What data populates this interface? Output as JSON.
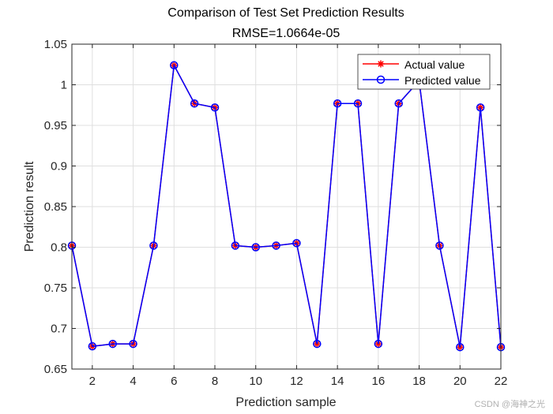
{
  "chart_data": {
    "type": "line",
    "title": "Comparison of Test Set Prediction Results",
    "subtitle": "RMSE=1.0664e-05",
    "xlabel": "Prediction sample",
    "ylabel": "Prediction result",
    "xlim": [
      1,
      22
    ],
    "ylim": [
      0.65,
      1.05
    ],
    "xticks": [
      "2",
      "4",
      "6",
      "8",
      "10",
      "12",
      "14",
      "16",
      "18",
      "20",
      "22"
    ],
    "yticks": [
      "0.65",
      "0.7",
      "0.75",
      "0.8",
      "0.85",
      "0.9",
      "0.95",
      "1",
      "1.05"
    ],
    "grid": true,
    "legend_position": "top-right",
    "x": [
      1,
      2,
      3,
      4,
      5,
      6,
      7,
      8,
      9,
      10,
      11,
      12,
      13,
      14,
      15,
      16,
      17,
      18,
      19,
      20,
      21,
      22
    ],
    "series": [
      {
        "name": "Actual value",
        "color": "#ff0000",
        "marker": "asterisk",
        "values": [
          0.802,
          0.678,
          0.681,
          0.681,
          0.802,
          1.024,
          0.977,
          0.972,
          0.802,
          0.8,
          0.802,
          0.805,
          0.681,
          0.977,
          0.977,
          0.681,
          0.977,
          1.005,
          0.802,
          0.677,
          0.972,
          0.677
        ]
      },
      {
        "name": "Predicted value",
        "color": "#0000ff",
        "marker": "circle",
        "values": [
          0.802,
          0.678,
          0.681,
          0.681,
          0.802,
          1.024,
          0.977,
          0.972,
          0.802,
          0.8,
          0.802,
          0.805,
          0.681,
          0.977,
          0.977,
          0.681,
          0.977,
          1.005,
          0.802,
          0.677,
          0.972,
          0.677
        ]
      }
    ]
  },
  "watermark": "CSDN @海神之光"
}
